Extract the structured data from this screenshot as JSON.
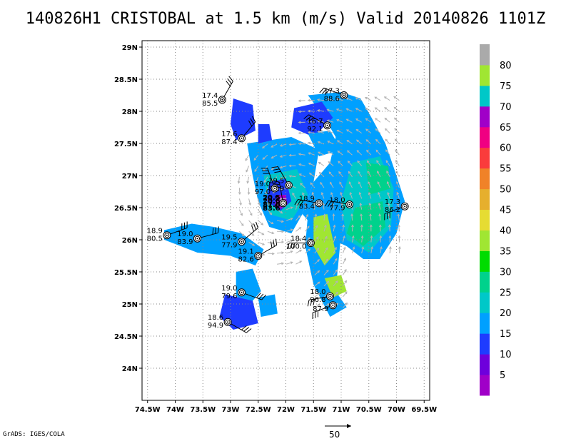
{
  "title": "140826H1 CRISTOBAL at 1.5 km (m/s) Valid 20140826 1101Z",
  "credit": "GrADS: IGES/COLA",
  "reference_vector_label": "50",
  "axes": {
    "lon_range": [
      -74.6,
      -69.4
    ],
    "lat_range": [
      23.5,
      29.1
    ],
    "x_ticks": [
      {
        "value": -74.5,
        "label": "74.5W"
      },
      {
        "value": -74,
        "label": "74W"
      },
      {
        "value": -73.5,
        "label": "73.5W"
      },
      {
        "value": -73,
        "label": "73W"
      },
      {
        "value": -72.5,
        "label": "72.5W"
      },
      {
        "value": -72,
        "label": "72W"
      },
      {
        "value": -71.5,
        "label": "71.5W"
      },
      {
        "value": -71,
        "label": "71W"
      },
      {
        "value": -70.5,
        "label": "70.5W"
      },
      {
        "value": -70,
        "label": "70W"
      },
      {
        "value": -69.5,
        "label": "69.5W"
      }
    ],
    "y_ticks": [
      {
        "value": 24,
        "label": "24N"
      },
      {
        "value": 24.5,
        "label": "24.5N"
      },
      {
        "value": 25,
        "label": "25N"
      },
      {
        "value": 25.5,
        "label": "25.5N"
      },
      {
        "value": 26,
        "label": "26N"
      },
      {
        "value": 26.5,
        "label": "26.5N"
      },
      {
        "value": 27,
        "label": "27N"
      },
      {
        "value": 27.5,
        "label": "27.5N"
      },
      {
        "value": 28,
        "label": "28N"
      },
      {
        "value": 28.5,
        "label": "28.5N"
      },
      {
        "value": 29,
        "label": "29N"
      }
    ],
    "grid": "dotted"
  },
  "colorbar": {
    "labels": [
      "5",
      "10",
      "15",
      "20",
      "25",
      "30",
      "35",
      "40",
      "45",
      "50",
      "55",
      "60",
      "65",
      "70",
      "75",
      "80"
    ],
    "colors": [
      "#a000c8",
      "#6e00dc",
      "#1e3cff",
      "#00a0ff",
      "#00c8c8",
      "#00d28c",
      "#00dc00",
      "#a0e632",
      "#e6dc32",
      "#e6af2d",
      "#f08228",
      "#fa3c3c",
      "#f00082",
      "#a000c8",
      "#00c8c8",
      "#a0e632",
      "#aaaaaa"
    ]
  },
  "chart_data": {
    "type": "map",
    "wind_field_colors": {
      "weak": "#1e3cff",
      "moderate": "#00a0ff",
      "strong": "#00c8c8",
      "stronger": "#00d28c",
      "peak": "#a0e632",
      "core": "#a000c8"
    },
    "observations": [
      {
        "lon": -73.15,
        "lat": 28.18,
        "wind": "17.4",
        "pressure": "85.5",
        "barb_dir": 60
      },
      {
        "lon": -72.8,
        "lat": 27.58,
        "wind": "17.6",
        "pressure": "87.4",
        "barb_dir": 50
      },
      {
        "lon": -70.95,
        "lat": 28.25,
        "wind": "17.3",
        "pressure": "88.6",
        "barb_dir": 160
      },
      {
        "lon": -71.25,
        "lat": 27.78,
        "wind": "16.7",
        "pressure": "92.1",
        "barb_dir": 150
      },
      {
        "lon": -71.95,
        "lat": 26.85,
        "wind": "19.5",
        "pressure": "86.9",
        "barb_dir": 120
      },
      {
        "lon": -72.2,
        "lat": 26.8,
        "wind": "19.0",
        "pressure": "97.0",
        "barb_dir": 110
      },
      {
        "lon": -72.05,
        "lat": 26.57,
        "wind": "20.5",
        "pressure": "87.6",
        "barb_dir": 100
      },
      {
        "lon": -71.4,
        "lat": 26.57,
        "wind": "18.9",
        "pressure": "83.4",
        "barb_dir": 170
      },
      {
        "lon": -70.85,
        "lat": 26.55,
        "wind": "18.0",
        "pressure": "77.9",
        "barb_dir": 170
      },
      {
        "lon": -69.85,
        "lat": 26.52,
        "wind": "17.3",
        "pressure": "86.2",
        "barb_dir": 200
      },
      {
        "lon": -74.15,
        "lat": 26.07,
        "wind": "18.9",
        "pressure": "80.5",
        "barb_dir": 20
      },
      {
        "lon": -73.6,
        "lat": 26.02,
        "wind": "19.0",
        "pressure": "83.9",
        "barb_dir": 15
      },
      {
        "lon": -72.8,
        "lat": 25.97,
        "wind": "19.5",
        "pressure": "77.9",
        "barb_dir": 40
      },
      {
        "lon": -72.5,
        "lat": 25.75,
        "wind": "19.1",
        "pressure": "82.6",
        "barb_dir": 30
      },
      {
        "lon": -71.55,
        "lat": 25.95,
        "wind": "18.4",
        "pressure": "100.0",
        "barb_dir": 180
      },
      {
        "lon": -72.8,
        "lat": 25.18,
        "wind": "19.0",
        "pressure": "79.6",
        "barb_dir": 340
      },
      {
        "lon": -71.2,
        "lat": 25.12,
        "wind": "18.0",
        "pressure": "96.8",
        "barb_dir": 190
      },
      {
        "lon": -71.15,
        "lat": 24.98,
        "wind": "",
        "pressure": "87.9",
        "barb_dir": 200
      },
      {
        "lon": -73.05,
        "lat": 24.72,
        "wind": "18.6",
        "pressure": "94.9",
        "barb_dir": 330
      }
    ],
    "stacked_center_labels": [
      "20.5",
      "20.6",
      "87.6",
      "83.6"
    ]
  }
}
